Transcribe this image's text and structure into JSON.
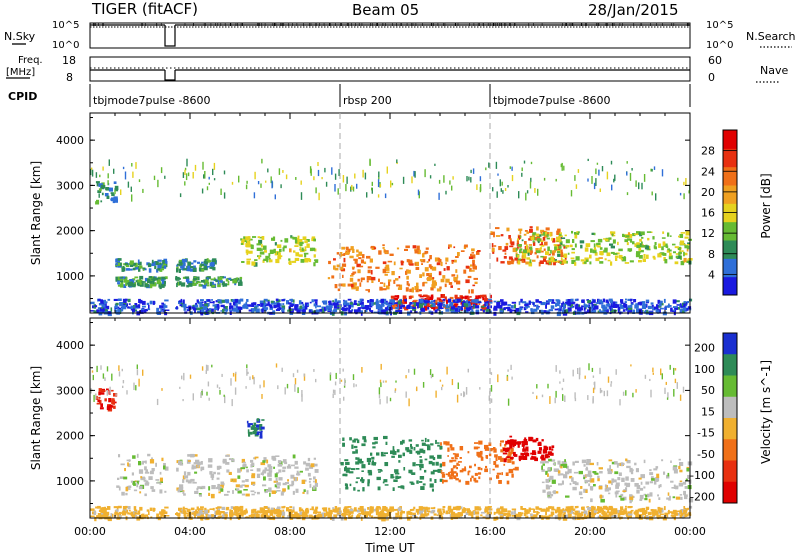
{
  "header": {
    "radar": "TIGER (fitACF)",
    "beam": "Beam 05",
    "date": "28/Jan/2015"
  },
  "strip_labels": {
    "nsky": "N.Sky",
    "nsearch": "N.Search",
    "freq_line1": "Freq.",
    "freq_line2": "[MHz]",
    "nave": "Nave",
    "cpid": "CPID"
  },
  "colors": {
    "power_scale": [
      "#1a1ae0",
      "#2f6fd8",
      "#2e8b57",
      "#66bb33",
      "#e6d21e",
      "#f0a020",
      "#f07018",
      "#e83010",
      "#e00000"
    ],
    "velocity_scale": [
      "#1a2fd0",
      "#2e8b57",
      "#66bb33",
      "#bdbdbd",
      "#f0b030",
      "#f07018",
      "#e83010",
      "#e00000"
    ]
  },
  "chart_data": [
    {
      "type": "line",
      "title": "N.Sky / N.Search",
      "left_ticks": [
        "10^5",
        "10^0"
      ],
      "right_ticks": [
        "10^5",
        "10^0"
      ],
      "x_range_hours": [
        0,
        24
      ],
      "data_gap_hours": [
        3.0,
        3.4
      ],
      "note": "noise levels near top of range except data gap"
    },
    {
      "type": "line",
      "title": "Freq. / Nave",
      "left_ticks": [
        "18",
        "8"
      ],
      "right_ticks": [
        "60",
        "0"
      ],
      "x_range_hours": [
        0,
        24
      ],
      "freq_mhz_approx": 10,
      "data_gap_hours": [
        3.0,
        3.4
      ]
    },
    {
      "type": "table",
      "title": "CPID",
      "segments": [
        {
          "label": "tbjmode7pulse -8600",
          "start_hour": 0,
          "end_hour": 10
        },
        {
          "label": "rbsp 200",
          "start_hour": 10,
          "end_hour": 16
        },
        {
          "label": "tbjmode7pulse -8600",
          "start_hour": 16,
          "end_hour": 24
        }
      ]
    },
    {
      "type": "heatmap",
      "title": "Power",
      "ylabel": "Slant Range [km]",
      "ylim": [
        180,
        4600
      ],
      "yticks": [
        1000,
        2000,
        3000,
        4000
      ],
      "colorbar_label": "Power [dB]",
      "colorbar_ticks": [
        4,
        8,
        12,
        16,
        20,
        24,
        28
      ],
      "colorbar_range": [
        0,
        32
      ],
      "x_range_hours": [
        0,
        24
      ],
      "bands": [
        {
          "t0": 0.2,
          "t1": 1.0,
          "r0": 2600,
          "r1": 3100,
          "level": 8
        },
        {
          "t0": 1.0,
          "t1": 5.0,
          "r0": 1150,
          "r1": 1400,
          "level": 8
        },
        {
          "t0": 1.0,
          "t1": 6.0,
          "r0": 800,
          "r1": 1000,
          "level": 10
        },
        {
          "t0": 6.0,
          "t1": 9.0,
          "r0": 1300,
          "r1": 1900,
          "level": 14
        },
        {
          "t0": 9.5,
          "t1": 15.5,
          "r0": 700,
          "r1": 1700,
          "level": 22
        },
        {
          "t0": 12.0,
          "t1": 16.0,
          "r0": 300,
          "r1": 600,
          "level": 28
        },
        {
          "t0": 16.0,
          "t1": 19.0,
          "r0": 1300,
          "r1": 2100,
          "level": 24
        },
        {
          "t0": 17.0,
          "t1": 24.0,
          "r0": 1300,
          "r1": 2000,
          "level": 14
        },
        {
          "t0": 0.0,
          "t1": 24.0,
          "r0": 200,
          "r1": 500,
          "level": 4
        }
      ]
    },
    {
      "type": "heatmap",
      "title": "Velocity",
      "ylabel": "Slant Range [km]",
      "xlabel": "Time UT",
      "ylim": [
        180,
        4600
      ],
      "yticks": [
        1000,
        2000,
        3000,
        4000
      ],
      "colorbar_label": "Velocity [m s^-1]",
      "colorbar_ticks": [
        "200",
        "100",
        "50",
        "15",
        "-15",
        "-50",
        "-100",
        "-200"
      ],
      "xticks": [
        "00:00",
        "04:00",
        "08:00",
        "12:00",
        "16:00",
        "20:00",
        "00:00"
      ],
      "x_range_hours": [
        0,
        24
      ],
      "bands": [
        {
          "t0": 0.2,
          "t1": 1.0,
          "r0": 2600,
          "r1": 3100,
          "v": -150
        },
        {
          "t0": 1.0,
          "t1": 9.0,
          "r0": 700,
          "r1": 1600,
          "v": 0
        },
        {
          "t0": 6.2,
          "t1": 7.0,
          "r0": 2000,
          "r1": 2400,
          "v": 150
        },
        {
          "t0": 10.0,
          "t1": 14.0,
          "r0": 800,
          "r1": 2000,
          "v": 120
        },
        {
          "t0": 14.0,
          "t1": 17.0,
          "r0": 1000,
          "r1": 1900,
          "v": -80
        },
        {
          "t0": 16.5,
          "t1": 18.5,
          "r0": 1500,
          "r1": 2000,
          "v": -180
        },
        {
          "t0": 18.0,
          "t1": 24.0,
          "r0": 600,
          "r1": 1500,
          "v": 0
        },
        {
          "t0": 0.0,
          "t1": 24.0,
          "r0": 200,
          "r1": 450,
          "v": -30
        }
      ]
    }
  ]
}
